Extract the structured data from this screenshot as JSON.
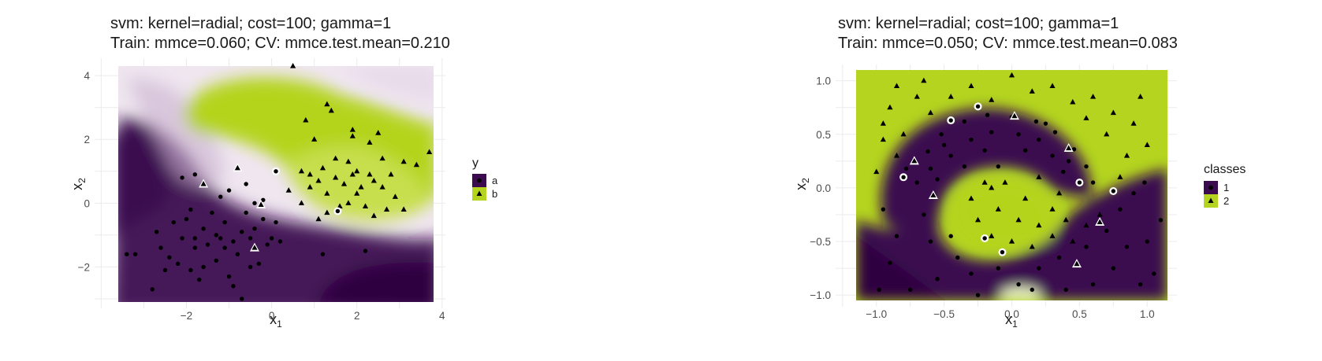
{
  "chart_data": [
    {
      "type": "scatter",
      "title": "svm: kernel=radial; cost=100; gamma=1",
      "subtitle": "Train: mmce=0.060; CV: mmce.test.mean=0.210",
      "xlabel": "x",
      "xlabel_sub": "1",
      "ylabel": "x",
      "ylabel_sub": "2",
      "xlim": [
        -3.6,
        3.8
      ],
      "ylim": [
        -3.1,
        4.3
      ],
      "xticks": [
        -2,
        0,
        2,
        4
      ],
      "yticks": [
        -2,
        0,
        2,
        4
      ],
      "legend_title": "y",
      "legend_placement": "right",
      "grid": true,
      "classes": [
        {
          "name": "a",
          "color": "#3b0a4f",
          "marker": "circle"
        },
        {
          "name": "b",
          "color": "#b4d41f",
          "marker": "triangle"
        }
      ],
      "series": [
        {
          "name": "a",
          "points": [
            [
              -3.4,
              -1.6
            ],
            [
              -3.2,
              -1.6
            ],
            [
              -2.8,
              -2.7
            ],
            [
              -2.6,
              -1.4
            ],
            [
              -2.7,
              -0.9
            ],
            [
              -2.5,
              -2.1
            ],
            [
              -2.4,
              -1.7
            ],
            [
              -2.2,
              -1.9
            ],
            [
              -2.1,
              -1.1
            ],
            [
              -2.0,
              -0.5
            ],
            [
              -1.9,
              -2.1
            ],
            [
              -1.8,
              -1.4
            ],
            [
              -1.7,
              -2.4
            ],
            [
              -1.6,
              -0.8
            ],
            [
              -1.5,
              -1.3
            ],
            [
              -1.4,
              -0.3
            ],
            [
              -1.3,
              -1.8
            ],
            [
              -1.2,
              -1.1
            ],
            [
              -1.1,
              -0.6
            ],
            [
              -1.0,
              -2.3
            ],
            [
              -0.9,
              -1.2
            ],
            [
              -0.8,
              -1.6
            ],
            [
              -0.7,
              -0.9
            ],
            [
              -0.6,
              -0.3
            ],
            [
              -0.5,
              -1.1
            ],
            [
              -0.4,
              -0.8
            ],
            [
              -0.3,
              -1.9
            ],
            [
              -0.2,
              -0.5
            ],
            [
              -0.1,
              -1.3
            ],
            [
              0.0,
              -1.1
            ],
            [
              0.1,
              -0.6
            ],
            [
              0.2,
              -1.2
            ],
            [
              -0.9,
              -2.6
            ],
            [
              -1.6,
              -2.0
            ],
            [
              -1.0,
              0.4
            ],
            [
              -0.6,
              0.6
            ],
            [
              -2.1,
              0.8
            ],
            [
              -1.8,
              0.9
            ],
            [
              -1.2,
              0.2
            ],
            [
              -0.2,
              0.1
            ],
            [
              -0.5,
              -2.0
            ],
            [
              -0.7,
              -3.0
            ],
            [
              -1.8,
              -1.1
            ],
            [
              -2.3,
              -0.6
            ],
            [
              1.2,
              -1.6
            ],
            [
              2.2,
              -1.5
            ],
            [
              -0.4,
              0.0
            ],
            [
              -1.3,
              -1.0
            ],
            [
              -1.9,
              -0.2
            ],
            [
              -1.1,
              -1.4
            ]
          ]
        },
        {
          "name": "b",
          "points": [
            [
              0.5,
              4.3
            ],
            [
              0.8,
              2.6
            ],
            [
              1.3,
              3.1
            ],
            [
              1.4,
              2.9
            ],
            [
              1.0,
              2.0
            ],
            [
              1.9,
              2.3
            ],
            [
              1.9,
              2.1
            ],
            [
              2.3,
              1.9
            ],
            [
              2.5,
              2.2
            ],
            [
              2.6,
              1.4
            ],
            [
              3.1,
              1.3
            ],
            [
              3.7,
              1.6
            ],
            [
              3.4,
              1.2
            ],
            [
              1.2,
              1.1
            ],
            [
              1.5,
              1.4
            ],
            [
              1.8,
              1.3
            ],
            [
              1.9,
              0.9
            ],
            [
              2.1,
              0.5
            ],
            [
              1.1,
              0.7
            ],
            [
              0.9,
              0.5
            ],
            [
              1.3,
              0.3
            ],
            [
              1.7,
              0.6
            ],
            [
              2.0,
              0.3
            ],
            [
              2.3,
              0.9
            ],
            [
              2.6,
              0.5
            ],
            [
              2.9,
              0.2
            ],
            [
              2.7,
              -0.2
            ],
            [
              3.1,
              -0.2
            ],
            [
              2.4,
              -0.4
            ],
            [
              1.6,
              -0.1
            ],
            [
              1.3,
              -0.3
            ],
            [
              0.7,
              0.0
            ],
            [
              0.4,
              0.4
            ],
            [
              0.7,
              1.0
            ],
            [
              1.5,
              0.8
            ],
            [
              2.0,
              1.0
            ],
            [
              2.4,
              0.7
            ],
            [
              2.8,
              0.9
            ],
            [
              1.1,
              -0.5
            ],
            [
              0.9,
              0.9
            ],
            [
              2.2,
              -0.1
            ],
            [
              1.8,
              0.0
            ]
          ]
        }
      ],
      "misclassified": [
        {
          "class": "b",
          "point": [
            -1.6,
            0.6
          ]
        },
        {
          "class": "b",
          "point": [
            -0.8,
            1.1
          ]
        },
        {
          "class": "b",
          "point": [
            -0.25,
            -0.05
          ]
        },
        {
          "class": "b",
          "point": [
            -0.4,
            -1.4
          ]
        },
        {
          "class": "a",
          "point": [
            0.1,
            1.0
          ]
        },
        {
          "class": "a",
          "point": [
            1.55,
            -0.25
          ]
        }
      ]
    },
    {
      "type": "scatter",
      "title": "svm: kernel=radial; cost=100; gamma=1",
      "subtitle": "Train: mmce=0.050; CV: mmce.test.mean=0.083",
      "xlabel": "x",
      "xlabel_sub": "1",
      "ylabel": "x",
      "ylabel_sub": "2",
      "xlim": [
        -1.15,
        1.15
      ],
      "ylim": [
        -1.05,
        1.1
      ],
      "xticks": [
        -1.0,
        -0.5,
        0.0,
        0.5,
        1.0
      ],
      "xtick_labels": [
        "−1.0",
        "−0.5",
        "0.0",
        "0.5",
        "1.0"
      ],
      "yticks": [
        -1.0,
        -0.5,
        0.0,
        0.5,
        1.0
      ],
      "ytick_labels": [
        "−1.0",
        "−0.5",
        "0.0",
        "0.5",
        "1.0"
      ],
      "legend_title": "classes",
      "legend_placement": "right",
      "grid": true,
      "classes": [
        {
          "name": "1",
          "color": "#3b0a4f",
          "marker": "circle"
        },
        {
          "name": "2",
          "color": "#b4d41f",
          "marker": "triangle"
        }
      ],
      "series": [
        {
          "name": "1",
          "points": [
            [
              -0.78,
              0.18
            ],
            [
              -0.62,
              0.34
            ],
            [
              -0.52,
              0.5
            ],
            [
              -0.35,
              0.62
            ],
            [
              -0.18,
              0.68
            ],
            [
              0.0,
              0.66
            ],
            [
              0.18,
              0.62
            ],
            [
              0.32,
              0.52
            ],
            [
              0.46,
              0.36
            ],
            [
              0.55,
              0.2
            ],
            [
              0.6,
              0.05
            ],
            [
              -0.7,
              0.05
            ],
            [
              -0.6,
              0.18
            ],
            [
              -0.45,
              0.3
            ],
            [
              -0.3,
              0.45
            ],
            [
              -0.15,
              0.52
            ],
            [
              0.05,
              0.5
            ],
            [
              0.2,
              0.45
            ],
            [
              0.3,
              0.3
            ],
            [
              0.38,
              0.15
            ],
            [
              -0.5,
              0.4
            ],
            [
              -0.2,
              0.35
            ],
            [
              0.1,
              0.35
            ],
            [
              -0.35,
              0.2
            ],
            [
              -0.55,
              0.08
            ],
            [
              -0.1,
              0.2
            ],
            [
              0.25,
              0.6
            ],
            [
              0.42,
              0.25
            ],
            [
              -0.65,
              -0.25
            ],
            [
              -0.85,
              -0.45
            ],
            [
              -0.9,
              -0.7
            ],
            [
              -0.75,
              -0.95
            ],
            [
              -0.55,
              -0.85
            ],
            [
              -0.4,
              -0.65
            ],
            [
              -0.3,
              -0.8
            ],
            [
              -0.1,
              -0.75
            ],
            [
              0.05,
              -0.9
            ],
            [
              0.2,
              -0.75
            ],
            [
              0.35,
              -0.65
            ],
            [
              0.55,
              -0.55
            ],
            [
              0.7,
              -0.4
            ],
            [
              0.8,
              -0.2
            ],
            [
              0.9,
              -0.05
            ],
            [
              1.0,
              -0.5
            ],
            [
              1.05,
              -0.8
            ],
            [
              0.95,
              -0.9
            ],
            [
              0.75,
              -0.75
            ],
            [
              0.6,
              -0.9
            ],
            [
              -0.95,
              -0.2
            ],
            [
              -0.6,
              -0.5
            ],
            [
              -0.45,
              -0.45
            ],
            [
              0.15,
              -0.95
            ],
            [
              0.4,
              -0.95
            ],
            [
              1.1,
              -0.3
            ],
            [
              -0.98,
              -0.95
            ],
            [
              -0.25,
              -1.0
            ],
            [
              0.85,
              -0.55
            ],
            [
              0.98,
              0.05
            ]
          ]
        },
        {
          "name": "2",
          "points": [
            [
              -1.0,
              0.15
            ],
            [
              -0.95,
              0.45
            ],
            [
              -0.9,
              0.75
            ],
            [
              -0.85,
              0.95
            ],
            [
              -0.7,
              0.85
            ],
            [
              -0.6,
              0.7
            ],
            [
              -0.45,
              0.85
            ],
            [
              -0.3,
              0.95
            ],
            [
              -0.15,
              0.82
            ],
            [
              0.0,
              1.05
            ],
            [
              0.15,
              0.9
            ],
            [
              0.3,
              0.95
            ],
            [
              0.45,
              0.8
            ],
            [
              0.6,
              0.85
            ],
            [
              0.75,
              0.7
            ],
            [
              0.9,
              0.6
            ],
            [
              1.0,
              0.4
            ],
            [
              0.85,
              0.3
            ],
            [
              0.7,
              0.5
            ],
            [
              0.8,
              0.1
            ],
            [
              -0.95,
              0.6
            ],
            [
              -0.8,
              0.5
            ],
            [
              -0.85,
              0.3
            ],
            [
              -0.65,
              1.0
            ],
            [
              0.55,
              0.65
            ],
            [
              0.95,
              0.85
            ],
            [
              -0.2,
              0.05
            ],
            [
              -0.3,
              -0.1
            ],
            [
              -0.25,
              -0.3
            ],
            [
              -0.15,
              -0.45
            ],
            [
              0.0,
              -0.5
            ],
            [
              0.15,
              -0.55
            ],
            [
              0.3,
              -0.45
            ],
            [
              0.4,
              -0.3
            ],
            [
              0.3,
              -0.2
            ],
            [
              0.1,
              -0.1
            ],
            [
              -0.05,
              0.05
            ],
            [
              0.2,
              0.1
            ],
            [
              0.05,
              -0.3
            ],
            [
              -0.1,
              -0.2
            ],
            [
              0.45,
              -0.5
            ],
            [
              0.55,
              -0.35
            ],
            [
              0.65,
              -0.25
            ],
            [
              0.2,
              -0.35
            ],
            [
              -0.15,
              0.0
            ],
            [
              0.35,
              -0.05
            ]
          ]
        }
      ],
      "misclassified": [
        {
          "class": "1",
          "point": [
            -0.45,
            0.63
          ]
        },
        {
          "class": "1",
          "point": [
            -0.25,
            0.76
          ]
        },
        {
          "class": "1",
          "point": [
            -0.8,
            0.1
          ]
        },
        {
          "class": "1",
          "point": [
            0.5,
            0.05
          ]
        },
        {
          "class": "1",
          "point": [
            0.75,
            -0.03
          ]
        },
        {
          "class": "1",
          "point": [
            -0.2,
            -0.47
          ]
        },
        {
          "class": "1",
          "point": [
            -0.07,
            -0.6
          ]
        },
        {
          "class": "2",
          "point": [
            0.02,
            0.67
          ]
        },
        {
          "class": "2",
          "point": [
            0.42,
            0.37
          ]
        },
        {
          "class": "2",
          "point": [
            -0.72,
            0.25
          ]
        },
        {
          "class": "2",
          "point": [
            -0.58,
            -0.07
          ]
        },
        {
          "class": "2",
          "point": [
            0.65,
            -0.32
          ]
        },
        {
          "class": "2",
          "point": [
            0.48,
            -0.71
          ]
        }
      ]
    }
  ]
}
